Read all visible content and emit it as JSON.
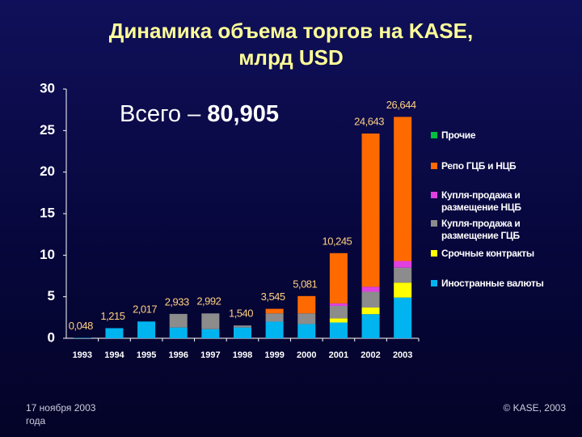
{
  "chart_data": {
    "type": "stacked_bar",
    "title": "Динамика объема торгов на KASE,\nмлрд USD",
    "annotation": {
      "label": "Всего –",
      "value": "80,905"
    },
    "categories": [
      "1993",
      "1994",
      "1995",
      "1996",
      "1997",
      "1998",
      "1999",
      "2000",
      "2001",
      "2002",
      "2003"
    ],
    "series": [
      {
        "name": "Иностранные валюты",
        "color": "#00b4f0",
        "values": [
          0.048,
          1.215,
          2.017,
          1.3,
          1.1,
          1.3,
          2.0,
          1.7,
          1.9,
          2.9,
          4.9
        ]
      },
      {
        "name": "Срочные контракты",
        "color": "#ffff00",
        "values": [
          0,
          0,
          0,
          0,
          0,
          0,
          0,
          0,
          0.5,
          0.8,
          1.8
        ]
      },
      {
        "name": "Купля-продажа и\nразмещение ГЦБ",
        "color": "#8c8c8c",
        "values": [
          0,
          0,
          0,
          1.633,
          1.892,
          0.24,
          1.0,
          1.3,
          1.5,
          1.9,
          1.8
        ]
      },
      {
        "name": "Купля-продажа и\nразмещение НЦБ",
        "color": "#e040e0",
        "values": [
          0,
          0,
          0,
          0,
          0,
          0,
          0,
          0,
          0.3,
          0.6,
          0.8
        ]
      },
      {
        "name": "Репо ГЦБ и НЦБ",
        "color": "#ff6a00",
        "values": [
          0,
          0,
          0,
          0,
          0,
          0,
          0.545,
          2.081,
          6.045,
          18.443,
          17.344
        ]
      },
      {
        "name": "Прочие",
        "color": "#00c040",
        "values": [
          0,
          0,
          0,
          0,
          0,
          0,
          0,
          0,
          0,
          0,
          0
        ]
      }
    ],
    "totals": {
      "values": [
        0.048,
        1.215,
        2.017,
        2.933,
        2.992,
        1.54,
        3.545,
        5.081,
        10.245,
        24.643,
        26.644
      ],
      "value_labels": [
        "0,048",
        "1,215",
        "2,017",
        "2,933",
        "2,992",
        "1,540",
        "3,545",
        "5,081",
        "10,245",
        "24,643",
        "26,644"
      ]
    },
    "ylim": [
      0,
      30
    ],
    "yticks": [
      0,
      5,
      10,
      15,
      20,
      25,
      30
    ]
  },
  "footer": {
    "left": "17 ноября 2003\nгода",
    "right": "© KASE, 2003"
  }
}
